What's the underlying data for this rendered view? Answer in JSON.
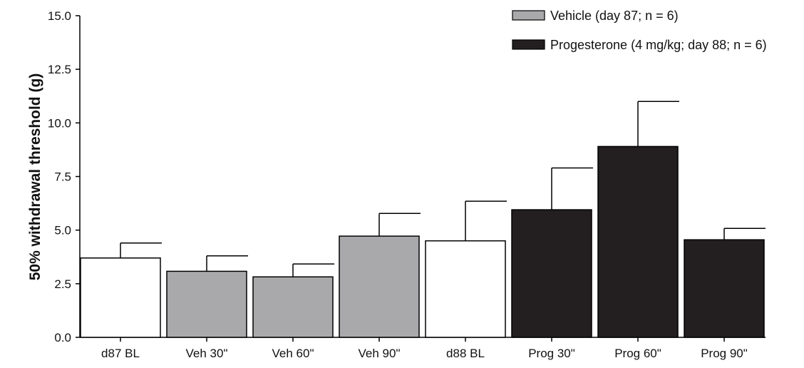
{
  "chart_data": {
    "type": "bar",
    "title": "",
    "xlabel": "",
    "ylabel": "50% withdrawal threshold (g)",
    "ylim": [
      0,
      15
    ],
    "yticks": [
      "0.0",
      "2.5",
      "5.0",
      "7.5",
      "10.0",
      "12.5",
      "15.0"
    ],
    "grid": false,
    "legend_position": "top-right",
    "categories": [
      "d87 BL",
      "Veh 30\"",
      "Veh 60\"",
      "Veh 90\"",
      "d88 BL",
      "Prog 30\"",
      "Prog 60\"",
      "Prog 90\""
    ],
    "values": [
      3.7,
      3.08,
      2.82,
      4.72,
      4.5,
      5.95,
      8.9,
      4.55
    ],
    "error_upper": [
      4.4,
      3.8,
      3.42,
      5.78,
      6.35,
      7.9,
      11.0,
      5.08
    ],
    "groups": [
      "baseline",
      "vehicle",
      "vehicle",
      "vehicle",
      "baseline",
      "progesterone",
      "progesterone",
      "progesterone"
    ],
    "colors": {
      "baseline": "#ffffff",
      "vehicle": "#a9a9ac",
      "progesterone": "#231f20",
      "outline": "#000000"
    },
    "legend": [
      {
        "group": "vehicle",
        "label": "Vehicle (day 87; n = 6)"
      },
      {
        "group": "progesterone",
        "label": "Progesterone (4 mg/kg; day 88; n = 6)"
      }
    ]
  }
}
